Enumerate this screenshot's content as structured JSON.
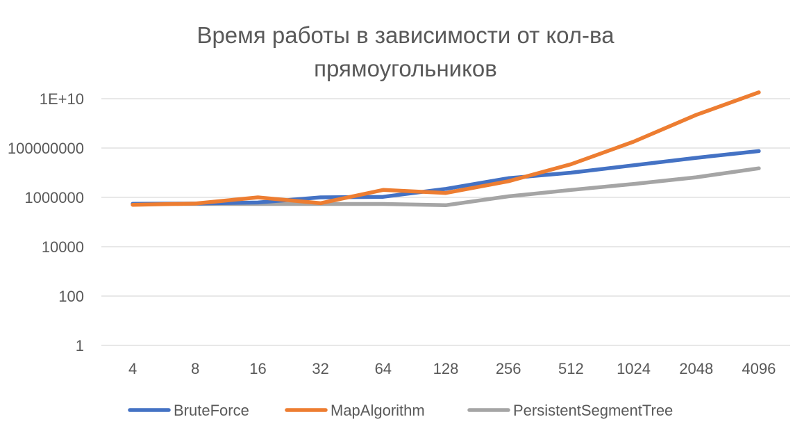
{
  "chart_data": {
    "type": "line",
    "title": "Время работы в зависимости от кол-ва прямоугольников",
    "title_lines": [
      "Время работы в зависимости от кол-ва",
      "прямоугольников"
    ],
    "xlabel": "",
    "ylabel": "",
    "y_scale": "log10",
    "ylim": [
      1,
      10000000000
    ],
    "y_ticks": [
      1,
      100,
      10000,
      1000000,
      100000000,
      10000000000
    ],
    "y_tick_labels": [
      "1",
      "100",
      "10000",
      "1000000",
      "100000000",
      "1E+10"
    ],
    "categories": [
      "4",
      "8",
      "16",
      "32",
      "64",
      "128",
      "256",
      "512",
      "1024",
      "2048",
      "4096"
    ],
    "grid": "horizontal",
    "legend_position": "bottom",
    "series": [
      {
        "name": "BruteForce",
        "color": "#4472C4",
        "values": [
          550000,
          560000,
          620000,
          1000000,
          1050000,
          2200000,
          6000000,
          10000000,
          20000000,
          40000000,
          75000000
        ]
      },
      {
        "name": "MapAlgorithm",
        "color": "#ED7D31",
        "values": [
          500000,
          560000,
          1000000,
          580000,
          2000000,
          1500000,
          4500000,
          22000000,
          180000000,
          2200000000,
          18000000000
        ]
      },
      {
        "name": "PersistentSegmentTree",
        "color": "#A5A5A5",
        "values": [
          540000,
          540000,
          540000,
          540000,
          540000,
          480000,
          1100000,
          2000000,
          3500000,
          6500000,
          15000000
        ]
      }
    ]
  }
}
